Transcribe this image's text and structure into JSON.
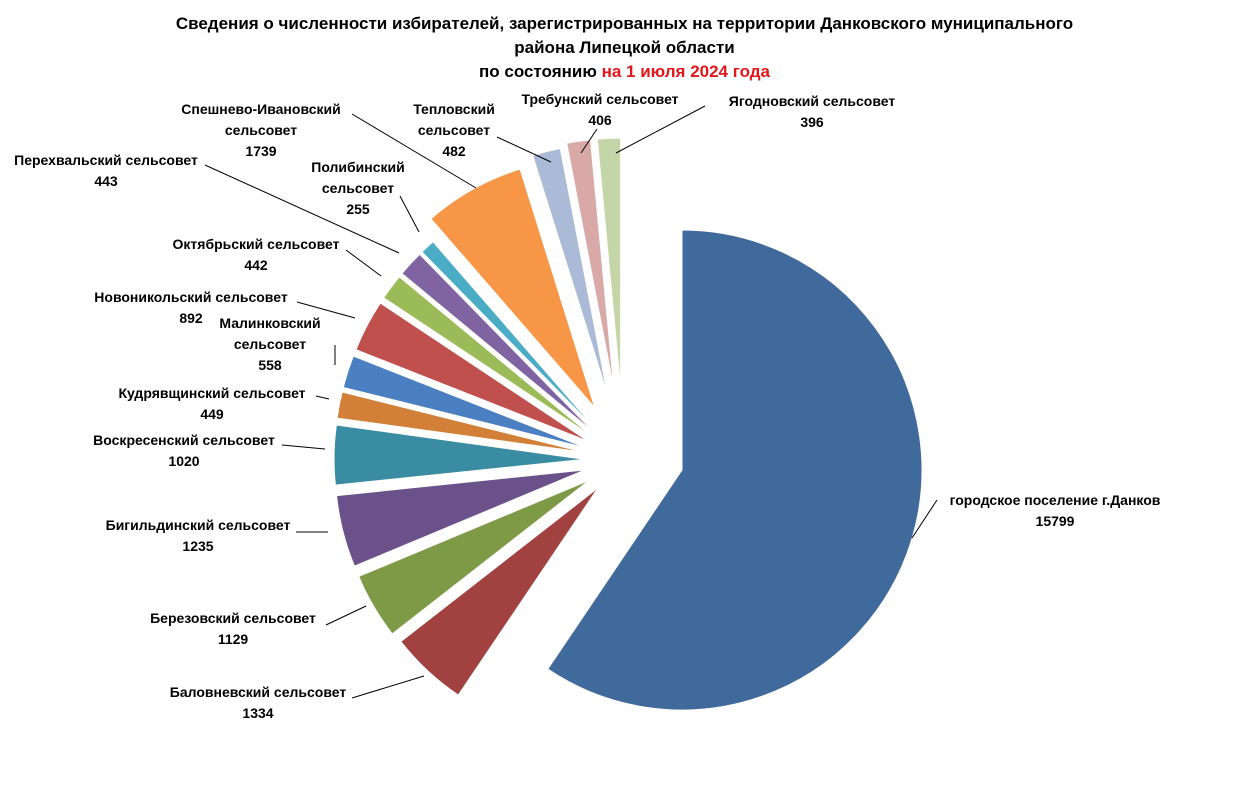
{
  "title": {
    "line1": "Сведения о численности избирателей, зарегистрированных на территории Данковского муниципального",
    "line2": "района Липецкой области",
    "line3_prefix": "по состоянию ",
    "line3_highlight": "на 1 июля 2024 года"
  },
  "colors": {
    "highlight": "#e3161b"
  },
  "chart_data": {
    "type": "pie",
    "exploded": true,
    "slices": [
      {
        "name": "городское поселение г.Данков",
        "value": 15799,
        "color": "#406a9b"
      },
      {
        "name": "Баловневский сельсовет",
        "value": 1334,
        "color": "#a14240"
      },
      {
        "name": "Березовский сельсовет",
        "value": 1129,
        "color": "#7f9a47"
      },
      {
        "name": "Бигильдинский сельсовет",
        "value": 1235,
        "color": "#6a5189"
      },
      {
        "name": "Воскресенский сельсовет",
        "value": 1020,
        "color": "#3a8ca2"
      },
      {
        "name": "Кудрявщинский сельсовет",
        "value": 449,
        "color": "#d27f37"
      },
      {
        "name": "Малинковский сельсовет",
        "value": 558,
        "color": "#4a7fc1"
      },
      {
        "name": "Новоникольский сельсовет",
        "value": 892,
        "color": "#c0504d"
      },
      {
        "name": "Октябрьский сельсовет",
        "value": 442,
        "color": "#9bbb59"
      },
      {
        "name": "Перехвальский сельсовет",
        "value": 443,
        "color": "#8064a2"
      },
      {
        "name": "Полибинский сельсовет",
        "value": 255,
        "color": "#4bacc6"
      },
      {
        "name": "Спешнево-Ивановский сельсовет",
        "value": 1739,
        "color": "#f79646"
      },
      {
        "name": "Тепловский сельсовет",
        "value": 482,
        "color": "#aabad7"
      },
      {
        "name": "Требунский сельсовет",
        "value": 406,
        "color": "#d9a9a8"
      },
      {
        "name": "Ягодновский сельсовет",
        "value": 396,
        "color": "#c4d6a8"
      }
    ]
  }
}
